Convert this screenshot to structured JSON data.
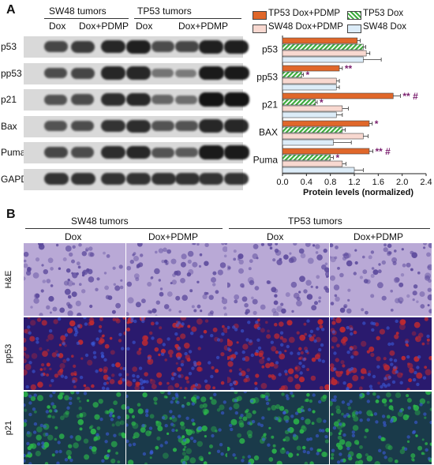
{
  "panel_a": {
    "label": "A",
    "groups": [
      {
        "name": "SW48 tumors",
        "conditions": [
          "Dox",
          "Dox+PDMP"
        ]
      },
      {
        "name": "TP53 tumors",
        "conditions": [
          "Dox",
          "Dox+PDMP"
        ]
      }
    ],
    "blot_rows": [
      "p53",
      "pp53",
      "p21",
      "Bax",
      "Puma",
      "GAPDH"
    ],
    "band_intensity": {
      "p53": [
        0.6,
        0.7,
        0.85,
        0.9,
        0.55,
        0.6,
        0.9,
        0.9
      ],
      "pp53": [
        0.55,
        0.6,
        0.85,
        0.85,
        0.25,
        0.2,
        0.95,
        0.95
      ],
      "p21": [
        0.5,
        0.55,
        0.8,
        0.85,
        0.35,
        0.3,
        1.0,
        1.0
      ],
      "Bax": [
        0.5,
        0.55,
        0.75,
        0.8,
        0.5,
        0.5,
        0.85,
        0.85
      ],
      "Puma": [
        0.6,
        0.55,
        0.8,
        0.85,
        0.5,
        0.45,
        0.95,
        0.95
      ],
      "GAPDH": [
        0.75,
        0.75,
        0.75,
        0.75,
        0.75,
        0.75,
        0.75,
        0.75
      ]
    }
  },
  "chart_data": {
    "type": "bar",
    "orientation": "horizontal",
    "categories": [
      "p53",
      "pp53",
      "p21",
      "BAX",
      "Puma"
    ],
    "series": [
      {
        "name": "TP53 Dox+PDMP",
        "color": "#e0672a",
        "pattern": "solid",
        "values": [
          1.25,
          0.95,
          1.85,
          1.45,
          1.45
        ],
        "errors": [
          0.05,
          0.05,
          0.12,
          0.05,
          0.06
        ]
      },
      {
        "name": "TP53 Dox",
        "color": "#3aab3a",
        "pattern": "hatched",
        "values": [
          1.35,
          0.32,
          0.55,
          1.0,
          0.8
        ],
        "errors": [
          0.04,
          0.03,
          0.03,
          0.05,
          0.05
        ]
      },
      {
        "name": "SW48 Dox+PDMP",
        "color": "#f8d8d0",
        "pattern": "solid",
        "values": [
          1.4,
          0.9,
          1.0,
          1.35,
          1.0
        ],
        "errors": [
          0.06,
          0.05,
          0.1,
          0.08,
          0.06
        ]
      },
      {
        "name": "SW48 Dox",
        "color": "#dcecf8",
        "pattern": "solid",
        "values": [
          1.35,
          0.9,
          0.9,
          0.85,
          1.2
        ],
        "errors": [
          0.3,
          0.05,
          0.1,
          0.3,
          0.15
        ]
      }
    ],
    "annotations": [
      {
        "category": "pp53",
        "series": "TP53 Dox+PDMP",
        "text": "**"
      },
      {
        "category": "pp53",
        "series": "TP53 Dox",
        "text": "*"
      },
      {
        "category": "p21",
        "series": "TP53 Dox+PDMP",
        "text": "** #"
      },
      {
        "category": "p21",
        "series": "TP53 Dox",
        "text": "*"
      },
      {
        "category": "BAX",
        "series": "TP53 Dox+PDMP",
        "text": "*"
      },
      {
        "category": "Puma",
        "series": "TP53 Dox+PDMP",
        "text": "** #"
      },
      {
        "category": "Puma",
        "series": "TP53 Dox",
        "text": "*"
      }
    ],
    "xlabel": "Protein levels (normalized)",
    "xlim": [
      0,
      2.4
    ],
    "xticks": [
      "0.0",
      "0.4",
      "0.8",
      "1.2",
      "1.6",
      "2.0",
      "2.4"
    ],
    "annotation_color": "#7a1f6e",
    "legend_position": "top"
  },
  "panel_b": {
    "label": "B",
    "groups": [
      {
        "name": "SW48 tumors",
        "conditions": [
          "Dox",
          "Dox+PDMP"
        ]
      },
      {
        "name": "TP53 tumors",
        "conditions": [
          "Dox",
          "Dox+PDMP"
        ]
      }
    ],
    "rows": [
      "H&E",
      "pp53",
      "p21"
    ],
    "row_stains": [
      "he",
      "pp53",
      "p21"
    ],
    "stain_colors": {
      "he": {
        "bg": "#b9a9d6",
        "cell": "#5c4a9c"
      },
      "pp53": {
        "bg": "#2a1a6e",
        "cell": "#c02a30"
      },
      "p21": {
        "bg": "#1a3a4a",
        "cell": "#2bb44a"
      }
    }
  }
}
